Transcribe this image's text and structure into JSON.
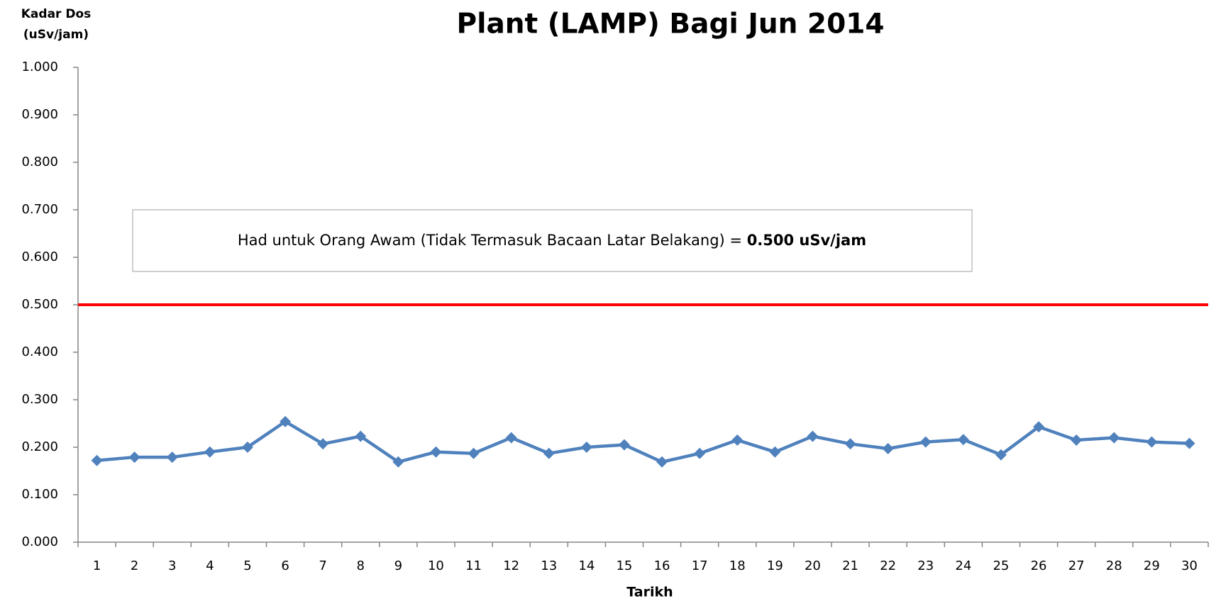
{
  "chart_data": {
    "type": "line",
    "title": "Plant (LAMP) Bagi Jun 2014",
    "y_axis_label": [
      "Kadar Dos",
      "(uSv/jam)"
    ],
    "x_axis_label": "Tarikh",
    "annotation": {
      "text": "Had untuk Orang Awam (Tidak Termasuk Bacaan Latar Belakang) = ",
      "bold": "0.500 uSv/jam"
    },
    "categories": [
      "1",
      "2",
      "3",
      "4",
      "5",
      "6",
      "7",
      "8",
      "9",
      "10",
      "11",
      "12",
      "13",
      "14",
      "15",
      "16",
      "17",
      "18",
      "19",
      "20",
      "21",
      "22",
      "23",
      "24",
      "25",
      "26",
      "27",
      "28",
      "29",
      "30"
    ],
    "series": [
      {
        "color": "#4f81bd",
        "values": [
          0.172,
          0.179,
          0.179,
          0.19,
          0.2,
          0.254,
          0.207,
          0.223,
          0.169,
          0.19,
          0.187,
          0.22,
          0.187,
          0.2,
          0.205,
          0.169,
          0.187,
          0.215,
          0.19,
          0.223,
          0.207,
          0.197,
          0.211,
          0.216,
          0.184,
          0.243,
          0.215,
          0.22,
          0.211,
          0.208
        ]
      }
    ],
    "limit_line": {
      "value": 0.5,
      "color": "#ff0000"
    },
    "ylim": [
      0,
      1
    ],
    "yticks": [
      {
        "value": 0,
        "label": "0.000"
      },
      {
        "value": 0.1,
        "label": "0.100"
      },
      {
        "value": 0.2,
        "label": "0.200"
      },
      {
        "value": 0.3,
        "label": "0.300"
      },
      {
        "value": 0.4,
        "label": "0.400"
      },
      {
        "value": 0.5,
        "label": "0.500"
      },
      {
        "value": 0.6,
        "label": "0.600"
      },
      {
        "value": 0.7,
        "label": "0.700"
      },
      {
        "value": 0.8,
        "label": "0.800"
      },
      {
        "value": 0.9,
        "label": "0.900"
      },
      {
        "value": 1,
        "label": "1.000"
      }
    ],
    "grid": false
  }
}
